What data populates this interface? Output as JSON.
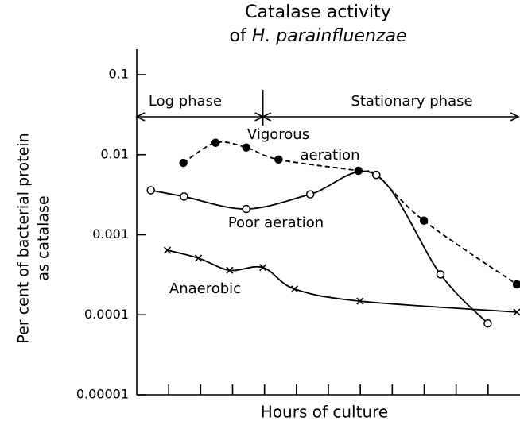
{
  "chart_data": {
    "type": "line",
    "title": "Catalase activity",
    "subtitle": {
      "prefix": "of",
      "italic": "H. parainfluenzae"
    },
    "x_label": "Hours of culture",
    "y_label": [
      "Per cent of bacterial protein",
      "as catalase"
    ],
    "log_y": true,
    "xlim": [
      0,
      12
    ],
    "xticks": [
      1,
      2,
      3,
      4,
      5,
      6,
      7,
      8,
      9,
      10,
      11
    ],
    "ylim": [
      1e-05,
      0.1
    ],
    "yticks": [
      1e-05,
      0.0001,
      0.001,
      0.01,
      0.1
    ],
    "phase_boundary": 3.95,
    "phases": [
      "Log phase",
      "Stationary phase"
    ],
    "annotations": [
      "Vigorous",
      "aeration",
      "Poor aeration",
      "Anaerobic"
    ],
    "series": [
      {
        "color": "#000000",
        "dash": true,
        "marker": "filled-circle",
        "x": [
          1.46,
          2.47,
          3.43,
          4.44,
          6.94,
          7.5,
          8.99,
          11.9
        ],
        "values": [
          0.0079,
          0.0141,
          0.0123,
          0.0087,
          0.0063,
          0.0056,
          0.0015,
          0.00024
        ]
      },
      {
        "color": "#000000",
        "dash": false,
        "marker": "open-circle",
        "x": [
          0.44,
          1.48,
          3.43,
          5.43,
          7.5,
          9.51,
          10.99
        ],
        "values": [
          0.0036,
          0.003,
          0.0021,
          0.0032,
          0.0056,
          0.00032,
          7.8e-05
        ]
      },
      {
        "color": "#000000",
        "dash": false,
        "marker": "cross",
        "x": [
          0.96,
          1.93,
          2.91,
          3.95,
          4.94,
          6.99,
          11.9
        ],
        "values": [
          0.00064,
          0.00051,
          0.00036,
          0.00039,
          0.00021,
          0.000148,
          0.000108
        ]
      }
    ]
  }
}
